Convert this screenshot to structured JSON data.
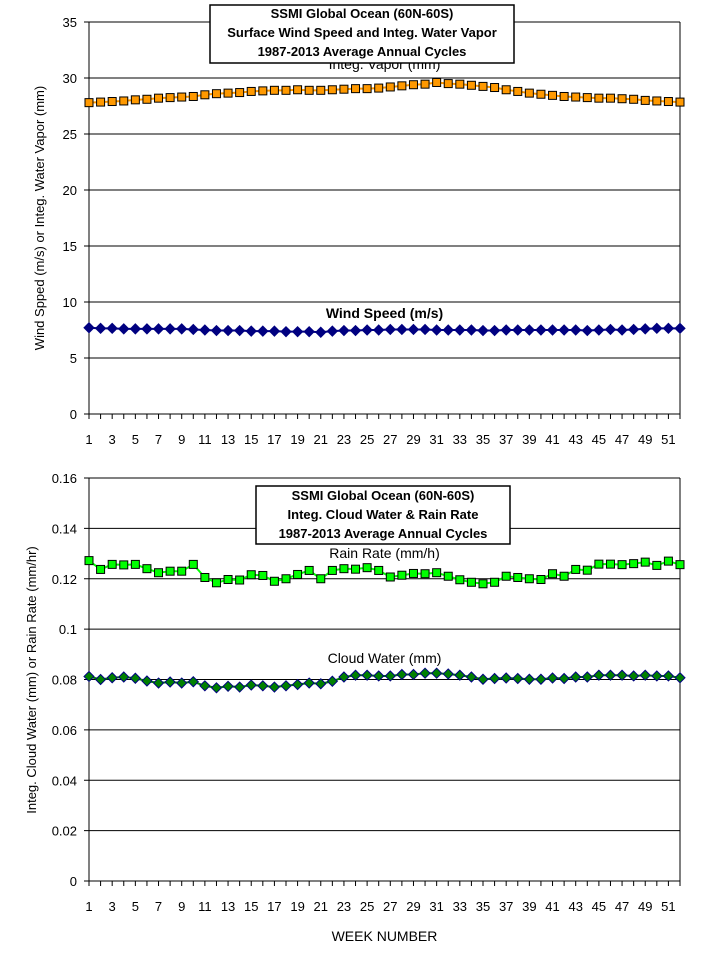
{
  "chart_data": [
    {
      "type": "line",
      "title": [
        "SSMI Global Ocean (60N-60S)",
        "Surface Wind Speed and Integ. Water Vapor",
        "1987-2013 Average Annual Cycles"
      ],
      "xlabel": "",
      "ylabel": "Wind Spped (m/s) or Integ. Water Vapor (mm)",
      "ylim": [
        0,
        35
      ],
      "yticks": [
        0,
        5,
        10,
        15,
        20,
        25,
        30,
        35
      ],
      "xlim": [
        1,
        52
      ],
      "xticks": [
        1,
        3,
        5,
        7,
        9,
        11,
        13,
        15,
        17,
        19,
        21,
        23,
        25,
        27,
        29,
        31,
        33,
        35,
        37,
        39,
        41,
        43,
        45,
        47,
        49,
        51
      ],
      "grid": true,
      "series": [
        {
          "name": "Integ. Vapor (mm)",
          "color": "#FF9900",
          "marker": "square",
          "values": [
            27.8,
            27.85,
            27.9,
            27.95,
            28.05,
            28.1,
            28.2,
            28.25,
            28.3,
            28.35,
            28.5,
            28.6,
            28.65,
            28.7,
            28.8,
            28.85,
            28.9,
            28.9,
            28.95,
            28.9,
            28.9,
            28.95,
            29.0,
            29.05,
            29.05,
            29.1,
            29.2,
            29.3,
            29.4,
            29.45,
            29.6,
            29.5,
            29.45,
            29.35,
            29.25,
            29.15,
            28.95,
            28.8,
            28.65,
            28.55,
            28.45,
            28.35,
            28.3,
            28.25,
            28.2,
            28.2,
            28.15,
            28.1,
            28.0,
            27.95,
            27.9,
            27.85
          ]
        },
        {
          "name": "Wind Speed (m/s)",
          "color": "#000080",
          "marker": "diamond",
          "values": [
            7.7,
            7.65,
            7.65,
            7.6,
            7.6,
            7.6,
            7.6,
            7.6,
            7.6,
            7.55,
            7.5,
            7.45,
            7.45,
            7.45,
            7.4,
            7.4,
            7.4,
            7.35,
            7.35,
            7.35,
            7.3,
            7.4,
            7.45,
            7.45,
            7.5,
            7.5,
            7.55,
            7.55,
            7.55,
            7.55,
            7.5,
            7.5,
            7.5,
            7.5,
            7.45,
            7.45,
            7.5,
            7.5,
            7.5,
            7.5,
            7.5,
            7.5,
            7.5,
            7.45,
            7.5,
            7.55,
            7.5,
            7.55,
            7.6,
            7.65,
            7.65,
            7.65
          ]
        }
      ]
    },
    {
      "type": "line",
      "title": [
        "SSMI Global Ocean (60N-60S)",
        "Integ. Cloud Water & Rain Rate",
        "1987-2013 Average Annual Cycles"
      ],
      "xlabel": "WEEK NUMBER",
      "ylabel": "Integ. Cloud Water (mm) or Rain Rate (mm/hr)",
      "ylim": [
        0,
        0.16
      ],
      "yticks": [
        "0",
        "0.02",
        "0.04",
        "0.06",
        "0.08",
        "0.1",
        "0.12",
        "0.14",
        "0.16"
      ],
      "xlim": [
        1,
        52
      ],
      "xticks": [
        1,
        3,
        5,
        7,
        9,
        11,
        13,
        15,
        17,
        19,
        21,
        23,
        25,
        27,
        29,
        31,
        33,
        35,
        37,
        39,
        41,
        43,
        45,
        47,
        49,
        51
      ],
      "grid": true,
      "series": [
        {
          "name": "Rain Rate (mm/h)",
          "color": "#00FF00",
          "marker": "square",
          "values": [
            0.1272,
            0.1237,
            0.1257,
            0.1255,
            0.1257,
            0.124,
            0.1224,
            0.123,
            0.123,
            0.1257,
            0.1205,
            0.1184,
            0.1197,
            0.1195,
            0.1216,
            0.1213,
            0.119,
            0.12,
            0.1217,
            0.1233,
            0.12,
            0.1233,
            0.124,
            0.1238,
            0.1244,
            0.1233,
            0.1207,
            0.1214,
            0.1221,
            0.122,
            0.1224,
            0.121,
            0.1196,
            0.1186,
            0.118,
            0.1186,
            0.121,
            0.1205,
            0.12,
            0.1197,
            0.122,
            0.121,
            0.1237,
            0.1234,
            0.1258,
            0.1258,
            0.1256,
            0.126,
            0.1266,
            0.1253,
            0.127,
            0.1256
          ]
        },
        {
          "name": "Cloud Water (mm)",
          "color": "#008000",
          "marker": "diamond",
          "values": [
            0.0812,
            0.08,
            0.0807,
            0.081,
            0.0805,
            0.0794,
            0.0786,
            0.079,
            0.0786,
            0.0791,
            0.0775,
            0.0767,
            0.0773,
            0.077,
            0.0778,
            0.0775,
            0.077,
            0.0775,
            0.078,
            0.0786,
            0.0783,
            0.0793,
            0.081,
            0.0817,
            0.0817,
            0.0814,
            0.0814,
            0.082,
            0.082,
            0.0825,
            0.0825,
            0.0822,
            0.0817,
            0.081,
            0.0801,
            0.0804,
            0.0806,
            0.0804,
            0.0801,
            0.0801,
            0.0806,
            0.0804,
            0.081,
            0.081,
            0.0817,
            0.0817,
            0.0817,
            0.0814,
            0.0817,
            0.0814,
            0.0814,
            0.0807
          ]
        }
      ]
    }
  ]
}
